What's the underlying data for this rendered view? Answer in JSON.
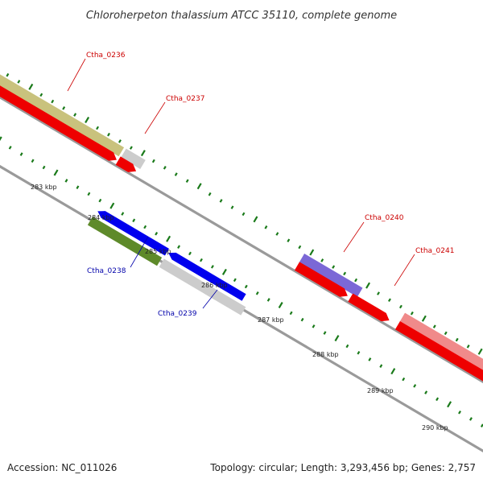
{
  "title": "Chloroherpeton thalassium ATCC 35110, complete genome",
  "footer": {
    "accession": "Accession: NC_011026",
    "summary": "Topology: circular; Length: 3,293,456 bp; Genes: 2,757"
  },
  "colors": {
    "tick": "#1a7a1a",
    "backbone": "#8a8a8a",
    "label_forward": "#cc0000",
    "label_reverse": "#0000aa"
  },
  "scale_labels": [
    "283 kbp",
    "284 kbp",
    "285 kbp",
    "286 kbp",
    "287 kbp",
    "288 kbp",
    "289 kbp",
    "290 kbp"
  ],
  "gene_labels": [
    {
      "name": "Ctha_0236",
      "strand": "forward"
    },
    {
      "name": "Ctha_0237",
      "strand": "forward"
    },
    {
      "name": "Ctha_0238",
      "strand": "reverse"
    },
    {
      "name": "Ctha_0239",
      "strand": "reverse"
    },
    {
      "name": "Ctha_0240",
      "strand": "forward"
    },
    {
      "name": "Ctha_0241",
      "strand": "forward"
    }
  ],
  "features": [
    {
      "gene": "Ctha_0236",
      "track": "outer",
      "color": "#c9c27d"
    },
    {
      "gene": "Ctha_0236",
      "track": "forward",
      "color": "#ee0000"
    },
    {
      "gene": "Ctha_0237",
      "track": "outer",
      "color": "#cccccc"
    },
    {
      "gene": "Ctha_0237",
      "track": "forward",
      "color": "#ee0000"
    },
    {
      "gene": "Ctha_0238",
      "track": "reverse-outer",
      "color": "#5e8a2a"
    },
    {
      "gene": "Ctha_0238",
      "track": "reverse",
      "color": "#0000ee"
    },
    {
      "gene": "Ctha_0239",
      "track": "reverse-outer",
      "color": "#cccccc"
    },
    {
      "gene": "Ctha_0239",
      "track": "reverse",
      "color": "#0000ee"
    },
    {
      "gene": "Ctha_0240",
      "track": "outer",
      "color": "#7b68d6"
    },
    {
      "gene": "Ctha_0240",
      "track": "forward",
      "color": "#ee0000"
    },
    {
      "gene": "Ctha_0241",
      "track": "outer",
      "color": "#f08a8a"
    },
    {
      "gene": "Ctha_0241",
      "track": "forward",
      "color": "#ee0000"
    }
  ]
}
